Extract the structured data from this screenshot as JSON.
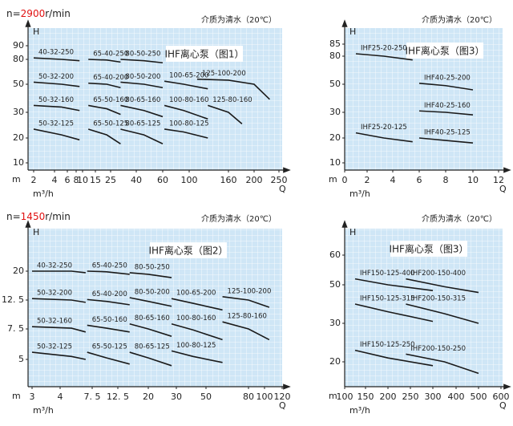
{
  "chart_data": [
    {
      "type": "line",
      "title": "IHF离心泵（图1）",
      "note": "介质为清水（20℃）",
      "speed": {
        "prefix": "n=",
        "value": "2900",
        "unit": "r/min"
      },
      "y_label": "H",
      "y_unit": "m",
      "x_label": "Q",
      "x_unit": "m³/h",
      "log_scale": true,
      "color": "#1a1a1a",
      "xlim": [
        2,
        250
      ],
      "xticks": [
        2,
        4,
        6,
        8,
        10,
        15,
        25,
        40,
        60,
        100,
        160,
        200,
        250
      ],
      "ylim": [
        10,
        90
      ],
      "yticks": [
        10,
        20,
        30,
        50,
        80,
        90
      ],
      "series": [
        {
          "name": "40-32-250",
          "x": [
            2,
            5,
            9
          ],
          "values": [
            81,
            80,
            78
          ]
        },
        {
          "name": "65-40-250",
          "x": [
            12,
            22,
            30
          ],
          "values": [
            80,
            79,
            76
          ]
        },
        {
          "name": "80-50-250",
          "x": [
            30,
            45,
            60
          ],
          "values": [
            80,
            78,
            75
          ]
        },
        {
          "name": "50-32-200",
          "x": [
            2,
            5,
            9
          ],
          "values": [
            52,
            50,
            48
          ]
        },
        {
          "name": "65-40-200",
          "x": [
            12,
            22,
            30
          ],
          "values": [
            51,
            50,
            47
          ]
        },
        {
          "name": "80-50-200",
          "x": [
            30,
            45,
            60
          ],
          "values": [
            52,
            50,
            47
          ]
        },
        {
          "name": "100-65-200",
          "x": [
            62,
            90,
            125
          ],
          "values": [
            53,
            50,
            46
          ]
        },
        {
          "name": "125-100-200",
          "x": [
            110,
            160,
            200,
            230
          ],
          "values": [
            55,
            54,
            50,
            38
          ]
        },
        {
          "name": "50-32-160",
          "x": [
            2,
            5,
            9
          ],
          "values": [
            34,
            33,
            31
          ]
        },
        {
          "name": "65-50-160",
          "x": [
            12,
            22,
            30
          ],
          "values": [
            34,
            32,
            29
          ]
        },
        {
          "name": "80-65-160",
          "x": [
            30,
            45,
            60
          ],
          "values": [
            34,
            31,
            28
          ]
        },
        {
          "name": "100-80-160",
          "x": [
            62,
            90,
            125
          ],
          "values": [
            34,
            31,
            27
          ]
        },
        {
          "name": "125-80-160",
          "x": [
            125,
            160,
            180
          ],
          "values": [
            34,
            30,
            25
          ]
        },
        {
          "name": "50-32-125",
          "x": [
            2,
            5,
            9
          ],
          "values": [
            23,
            21,
            19
          ]
        },
        {
          "name": "65-50-125",
          "x": [
            12,
            22,
            30
          ],
          "values": [
            23,
            21,
            17
          ]
        },
        {
          "name": "80-65-125",
          "x": [
            30,
            45,
            60
          ],
          "values": [
            23,
            21,
            17
          ]
        },
        {
          "name": "100-80-125",
          "x": [
            62,
            90,
            125
          ],
          "values": [
            23,
            22,
            20
          ]
        }
      ]
    },
    {
      "type": "line",
      "title": "IHF离心泵（图3）",
      "note": "介质为清水（20℃）",
      "y_label": "H",
      "y_unit": "m",
      "x_label": "Q",
      "x_unit": "m³/h",
      "log_scale": false,
      "color": "#1a1a1a",
      "xlim": [
        0,
        12
      ],
      "xticks": [
        0,
        2,
        4,
        6,
        8,
        10,
        12
      ],
      "ylim": [
        10,
        85
      ],
      "yticks": [
        10,
        20,
        30,
        50,
        80,
        85
      ],
      "series": [
        {
          "name": "IHF25-20-250",
          "x": [
            1,
            3.3,
            5.5
          ],
          "values": [
            81,
            80,
            76
          ]
        },
        {
          "name": "IHF25-20-125",
          "x": [
            1,
            3.3,
            5.5
          ],
          "values": [
            22,
            20,
            18.5
          ]
        },
        {
          "name": "IHF40-25-200",
          "x": [
            6,
            8,
            10
          ],
          "values": [
            51,
            49,
            46
          ]
        },
        {
          "name": "IHF40-25-160",
          "x": [
            6,
            8,
            10
          ],
          "values": [
            31,
            30,
            29
          ]
        },
        {
          "name": "IHF40-25-125",
          "x": [
            6,
            8,
            10
          ],
          "values": [
            20,
            19,
            18
          ]
        }
      ]
    },
    {
      "type": "line",
      "title": "IHF离心泵（图2）",
      "note": "介质为清水（20℃）",
      "speed": {
        "prefix": "n=",
        "value": "1450",
        "unit": "r/min"
      },
      "y_label": "H",
      "y_unit": "m",
      "x_label": "Q",
      "x_unit": "m³/h",
      "log_scale": true,
      "color": "#1a1a1a",
      "xlim": [
        3,
        120
      ],
      "xticks": [
        3,
        4,
        {
          "value": 7.5,
          "label": "7. 5"
        },
        {
          "value": 12.5,
          "label": "12. 5"
        },
        20,
        30,
        50,
        80,
        100,
        120
      ],
      "ylim": [
        5,
        20
      ],
      "yticks": [
        5,
        {
          "value": 7.5,
          "label": "7. 5"
        },
        {
          "value": 12.5,
          "label": "12. 5"
        },
        20
      ],
      "series": [
        {
          "name": "40-32-250",
          "x": [
            3,
            5,
            6.6
          ],
          "values": [
            20,
            20,
            19.5
          ]
        },
        {
          "name": "65-40-250",
          "x": [
            6.8,
            10,
            15
          ],
          "values": [
            20,
            19.8,
            19
          ]
        },
        {
          "name": "80-50-250",
          "x": [
            15,
            20,
            28
          ],
          "values": [
            19.5,
            19,
            18
          ]
        },
        {
          "name": "50-32-200",
          "x": [
            3,
            5,
            6.6
          ],
          "values": [
            12.8,
            12.5,
            12
          ]
        },
        {
          "name": "65-40-200",
          "x": [
            6.8,
            10,
            15
          ],
          "values": [
            12.6,
            12.2,
            11.5
          ]
        },
        {
          "name": "80-50-200",
          "x": [
            15,
            20,
            28
          ],
          "values": [
            13,
            12.2,
            11.2
          ]
        },
        {
          "name": "100-65-200",
          "x": [
            28,
            40,
            60
          ],
          "values": [
            12.8,
            11.8,
            10.5
          ]
        },
        {
          "name": "125-100-200",
          "x": [
            60,
            80,
            105
          ],
          "values": [
            13.2,
            12.5,
            11
          ]
        },
        {
          "name": "50-32-160",
          "x": [
            3,
            5,
            6.6
          ],
          "values": [
            7.8,
            7.6,
            7.2
          ]
        },
        {
          "name": "65-50-160",
          "x": [
            6.8,
            10,
            15
          ],
          "values": [
            8,
            7.6,
            7.2
          ]
        },
        {
          "name": "80-65-160",
          "x": [
            15,
            20,
            28
          ],
          "values": [
            8.2,
            7.5,
            6.8
          ]
        },
        {
          "name": "100-80-160",
          "x": [
            28,
            40,
            60
          ],
          "values": [
            8.2,
            7.4,
            6.5
          ]
        },
        {
          "name": "125-80-160",
          "x": [
            60,
            80,
            105
          ],
          "values": [
            8.5,
            7.5,
            6.5
          ]
        },
        {
          "name": "50-32-125",
          "x": [
            3,
            5,
            6.6
          ],
          "values": [
            5.5,
            5.2,
            5
          ]
        },
        {
          "name": "65-50-125",
          "x": [
            6.8,
            10,
            15
          ],
          "values": [
            5.5,
            5.1,
            4.7
          ]
        },
        {
          "name": "80-65-125",
          "x": [
            15,
            20,
            28
          ],
          "values": [
            5.5,
            5.1,
            4.6
          ]
        },
        {
          "name": "100-80-125",
          "x": [
            28,
            40,
            60
          ],
          "values": [
            5.6,
            5.2,
            4.8
          ]
        }
      ]
    },
    {
      "type": "line",
      "title": "IHF离心泵（图3）",
      "note": "介质为清水（20℃）",
      "y_label": "H",
      "y_unit": "m",
      "x_label": "Q",
      "x_unit": "m³/h",
      "log_scale": false,
      "color": "#1a1a1a",
      "xlim": [
        100,
        600
      ],
      "xticks": [
        100,
        150,
        200,
        250,
        300,
        400,
        500,
        600
      ],
      "ylim": [
        20,
        60
      ],
      "yticks": [
        20,
        30,
        50,
        60
      ],
      "series": [
        {
          "name": "IHF150-125-400",
          "x": [
            125,
            200,
            300
          ],
          "values": [
            52,
            50,
            47
          ]
        },
        {
          "name": "IHF200-150-400",
          "x": [
            240,
            350,
            500
          ],
          "values": [
            52,
            49,
            46
          ]
        },
        {
          "name": "IHF150-125-315",
          "x": [
            125,
            200,
            300
          ],
          "values": [
            40,
            36,
            31
          ]
        },
        {
          "name": "IHF200-150-315",
          "x": [
            240,
            350,
            500
          ],
          "values": [
            40,
            35,
            30
          ]
        },
        {
          "name": "IHF150-125-250",
          "x": [
            125,
            200,
            300
          ],
          "values": [
            23,
            21,
            19
          ]
        },
        {
          "name": "IHF200-150-250",
          "x": [
            240,
            350,
            500
          ],
          "values": [
            22,
            20,
            17
          ]
        }
      ]
    }
  ]
}
